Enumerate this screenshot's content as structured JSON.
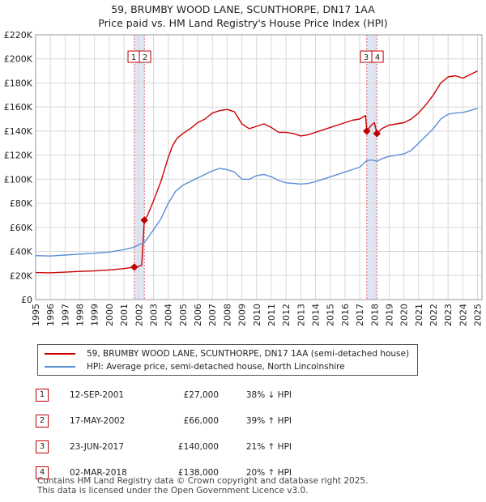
{
  "chart_data": {
    "type": "line",
    "title": "59, BRUMBY WOOD LANE, SCUNTHORPE, DN17 1AA",
    "subtitle": "Price paid vs. HM Land Registry's House Price Index (HPI)",
    "xlim": [
      1995,
      2025.3
    ],
    "ylim": [
      0,
      220000
    ],
    "x_ticks": [
      "1995",
      "1996",
      "1997",
      "1998",
      "1999",
      "2000",
      "2001",
      "2002",
      "2003",
      "2004",
      "2005",
      "2006",
      "2007",
      "2008",
      "2009",
      "2010",
      "2011",
      "2012",
      "2013",
      "2014",
      "2015",
      "2016",
      "2017",
      "2018",
      "2019",
      "2020",
      "2021",
      "2022",
      "2023",
      "2024",
      "2025"
    ],
    "y_ticks": [
      {
        "value": 0,
        "label": "£0"
      },
      {
        "value": 20000,
        "label": "£20K"
      },
      {
        "value": 40000,
        "label": "£40K"
      },
      {
        "value": 60000,
        "label": "£60K"
      },
      {
        "value": 80000,
        "label": "£80K"
      },
      {
        "value": 100000,
        "label": "£100K"
      },
      {
        "value": 120000,
        "label": "£120K"
      },
      {
        "value": 140000,
        "label": "£140K"
      },
      {
        "value": 160000,
        "label": "£160K"
      },
      {
        "value": 180000,
        "label": "£180K"
      },
      {
        "value": 200000,
        "label": "£200K"
      },
      {
        "value": 220000,
        "label": "£220K"
      }
    ],
    "grid": true,
    "series": [
      {
        "name": "59, BRUMBY WOOD LANE, SCUNTHORPE, DN17 1AA (semi-detached house)",
        "color": "#cc0000",
        "points": [
          [
            1995.0,
            22500
          ],
          [
            1996.0,
            22300
          ],
          [
            1997.0,
            22800
          ],
          [
            1998.0,
            23400
          ],
          [
            1999.0,
            23800
          ],
          [
            2000.0,
            24600
          ],
          [
            2001.0,
            25800
          ],
          [
            2001.7,
            27000
          ],
          [
            2002.0,
            27500
          ],
          [
            2002.1,
            28200
          ],
          [
            2002.2,
            28300
          ],
          [
            2002.38,
            66000
          ],
          [
            2002.6,
            70000
          ],
          [
            2003.0,
            82000
          ],
          [
            2003.5,
            98000
          ],
          [
            2004.0,
            118000
          ],
          [
            2004.3,
            128000
          ],
          [
            2004.6,
            134000
          ],
          [
            2005.0,
            138000
          ],
          [
            2005.5,
            142000
          ],
          [
            2006.0,
            147000
          ],
          [
            2006.5,
            150000
          ],
          [
            2007.0,
            155000
          ],
          [
            2007.5,
            157000
          ],
          [
            2008.0,
            158000
          ],
          [
            2008.5,
            156000
          ],
          [
            2009.0,
            146000
          ],
          [
            2009.5,
            142000
          ],
          [
            2010.0,
            144000
          ],
          [
            2010.5,
            146000
          ],
          [
            2011.0,
            143000
          ],
          [
            2011.5,
            139000
          ],
          [
            2012.0,
            139000
          ],
          [
            2012.5,
            138000
          ],
          [
            2013.0,
            136000
          ],
          [
            2013.5,
            137000
          ],
          [
            2014.0,
            139000
          ],
          [
            2014.5,
            141000
          ],
          [
            2015.0,
            143000
          ],
          [
            2015.5,
            145000
          ],
          [
            2016.0,
            147000
          ],
          [
            2016.5,
            149000
          ],
          [
            2017.0,
            150000
          ],
          [
            2017.4,
            153000
          ],
          [
            2017.48,
            140000
          ],
          [
            2017.8,
            145000
          ],
          [
            2018.0,
            147000
          ],
          [
            2018.17,
            138000
          ],
          [
            2018.5,
            142000
          ],
          [
            2019.0,
            145000
          ],
          [
            2019.5,
            146000
          ],
          [
            2020.0,
            147000
          ],
          [
            2020.5,
            150000
          ],
          [
            2021.0,
            155000
          ],
          [
            2021.5,
            162000
          ],
          [
            2022.0,
            170000
          ],
          [
            2022.5,
            180000
          ],
          [
            2023.0,
            185000
          ],
          [
            2023.5,
            186000
          ],
          [
            2024.0,
            184000
          ],
          [
            2024.5,
            187000
          ],
          [
            2025.0,
            190000
          ]
        ]
      },
      {
        "name": "HPI: Average price, semi-detached house, North Lincolnshire",
        "color": "#5b8fd6",
        "points": [
          [
            1995.0,
            36500
          ],
          [
            1996.0,
            36200
          ],
          [
            1997.0,
            37000
          ],
          [
            1998.0,
            37800
          ],
          [
            1999.0,
            38500
          ],
          [
            2000.0,
            39500
          ],
          [
            2001.0,
            41500
          ],
          [
            2001.7,
            43500
          ],
          [
            2002.0,
            45500
          ],
          [
            2002.38,
            47500
          ],
          [
            2002.6,
            51000
          ],
          [
            2003.0,
            58000
          ],
          [
            2003.5,
            67000
          ],
          [
            2004.0,
            80000
          ],
          [
            2004.5,
            90000
          ],
          [
            2005.0,
            95000
          ],
          [
            2005.5,
            98000
          ],
          [
            2006.0,
            101000
          ],
          [
            2006.5,
            104000
          ],
          [
            2007.0,
            107000
          ],
          [
            2007.5,
            109000
          ],
          [
            2008.0,
            108000
          ],
          [
            2008.5,
            106000
          ],
          [
            2009.0,
            100000
          ],
          [
            2009.5,
            100000
          ],
          [
            2010.0,
            103000
          ],
          [
            2010.5,
            104000
          ],
          [
            2011.0,
            102000
          ],
          [
            2011.5,
            99000
          ],
          [
            2012.0,
            97000
          ],
          [
            2012.5,
            96500
          ],
          [
            2013.0,
            96000
          ],
          [
            2013.5,
            96500
          ],
          [
            2014.0,
            98000
          ],
          [
            2014.5,
            100000
          ],
          [
            2015.0,
            102000
          ],
          [
            2015.5,
            104000
          ],
          [
            2016.0,
            106000
          ],
          [
            2016.5,
            108000
          ],
          [
            2017.0,
            110000
          ],
          [
            2017.48,
            115500
          ],
          [
            2017.8,
            116000
          ],
          [
            2018.17,
            115000
          ],
          [
            2018.5,
            117000
          ],
          [
            2019.0,
            119000
          ],
          [
            2019.5,
            120000
          ],
          [
            2020.0,
            121000
          ],
          [
            2020.5,
            124000
          ],
          [
            2021.0,
            130000
          ],
          [
            2021.5,
            136000
          ],
          [
            2022.0,
            142000
          ],
          [
            2022.5,
            150000
          ],
          [
            2023.0,
            154000
          ],
          [
            2023.5,
            155000
          ],
          [
            2024.0,
            155500
          ],
          [
            2024.5,
            157000
          ],
          [
            2025.0,
            159000
          ]
        ]
      }
    ],
    "sales": [
      {
        "id": "1",
        "date": "12-SEP-2001",
        "price": "£27,000",
        "hpi": "38% ↓ HPI",
        "x": 2001.7,
        "y": 27000
      },
      {
        "id": "2",
        "date": "17-MAY-2002",
        "price": "£66,000",
        "hpi": "39% ↑ HPI",
        "x": 2002.38,
        "y": 66000
      },
      {
        "id": "3",
        "date": "23-JUN-2017",
        "price": "£140,000",
        "hpi": "21% ↑ HPI",
        "x": 2017.48,
        "y": 140000
      },
      {
        "id": "4",
        "date": "02-MAR-2018",
        "price": "£138,000",
        "hpi": "20% ↑ HPI",
        "x": 2018.17,
        "y": 138000
      }
    ],
    "shaded_regions": [
      [
        2001.7,
        2002.38
      ],
      [
        2017.48,
        2018.17
      ]
    ]
  },
  "legend": {
    "property_label": "59, BRUMBY WOOD LANE, SCUNTHORPE, DN17 1AA (semi-detached house)",
    "hpi_label": "HPI: Average price, semi-detached house, North Lincolnshire"
  },
  "footer": {
    "line1": "Contains HM Land Registry data © Crown copyright and database right 2025.",
    "line2": "This data is licensed under the Open Government Licence v3.0."
  },
  "colors": {
    "property": "#cc0000",
    "hpi": "#5b8fd6",
    "marker": "#c00000"
  }
}
